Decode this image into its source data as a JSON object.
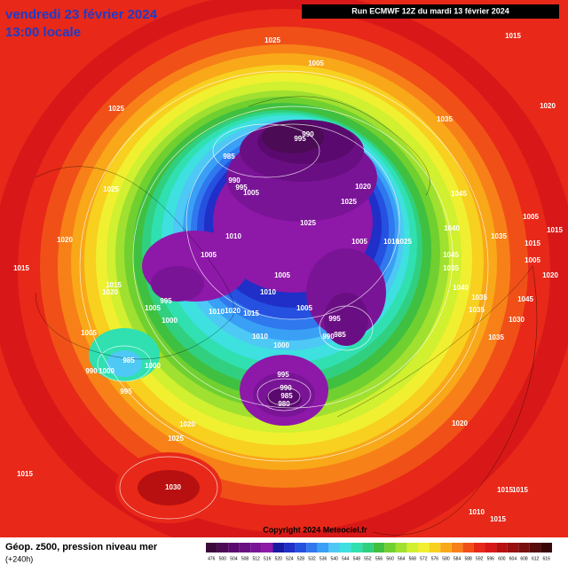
{
  "header": {
    "valid_date": "vendredi 23 février 2024",
    "local_time": "13:00 locale",
    "run": "Run ECMWF 12Z du mardi 13 février 2024"
  },
  "map": {
    "copyright": "Copyright 2024 Meteociel.fr",
    "isobars": [
      1025,
      1015,
      1005,
      1020,
      1025,
      1035,
      990,
      995,
      985,
      990,
      995,
      1005,
      1020,
      1045,
      1025,
      1025,
      1025,
      1040,
      1005,
      1035,
      1015,
      1010,
      1005,
      1025,
      1010,
      1020,
      1045,
      1015,
      1005,
      1005,
      1015,
      1035,
      1020,
      1005,
      1015,
      1020,
      1040,
      995,
      1010,
      1035,
      1005,
      1010,
      1020,
      1015,
      1005,
      1035,
      1045,
      1000,
      995,
      1030,
      990,
      985,
      1005,
      1010,
      1000,
      1035,
      985,
      1000,
      990,
      1000,
      995,
      990,
      985,
      980,
      995,
      1020,
      1020,
      1025,
      1015,
      1030,
      1015,
      1015,
      1010,
      1015
    ]
  },
  "footer": {
    "title": "Géop. z500, pression niveau mer",
    "lead": "(+240h)",
    "scale": [
      476,
      500,
      504,
      508,
      512,
      516,
      520,
      524,
      528,
      532,
      536,
      540,
      544,
      548,
      552,
      556,
      560,
      564,
      568,
      572,
      576,
      580,
      584,
      588,
      592,
      596,
      600,
      604,
      608,
      612,
      616
    ],
    "colors": [
      "#3b0a3b",
      "#4b0b55",
      "#5a0a6e",
      "#6a0f83",
      "#7a1496",
      "#8e18a8",
      "#1a1aa0",
      "#1f2fc8",
      "#2550e0",
      "#2f78ee",
      "#3aa0f5",
      "#4ec8f5",
      "#3ee0e0",
      "#30e0b0",
      "#30d080",
      "#40c040",
      "#70d030",
      "#a0e030",
      "#d0f030",
      "#f0f030",
      "#f8d020",
      "#f8a818",
      "#f88018",
      "#f05018",
      "#e82818",
      "#d81818",
      "#b81010",
      "#981010",
      "#781010",
      "#580c0c",
      "#380808"
    ]
  }
}
